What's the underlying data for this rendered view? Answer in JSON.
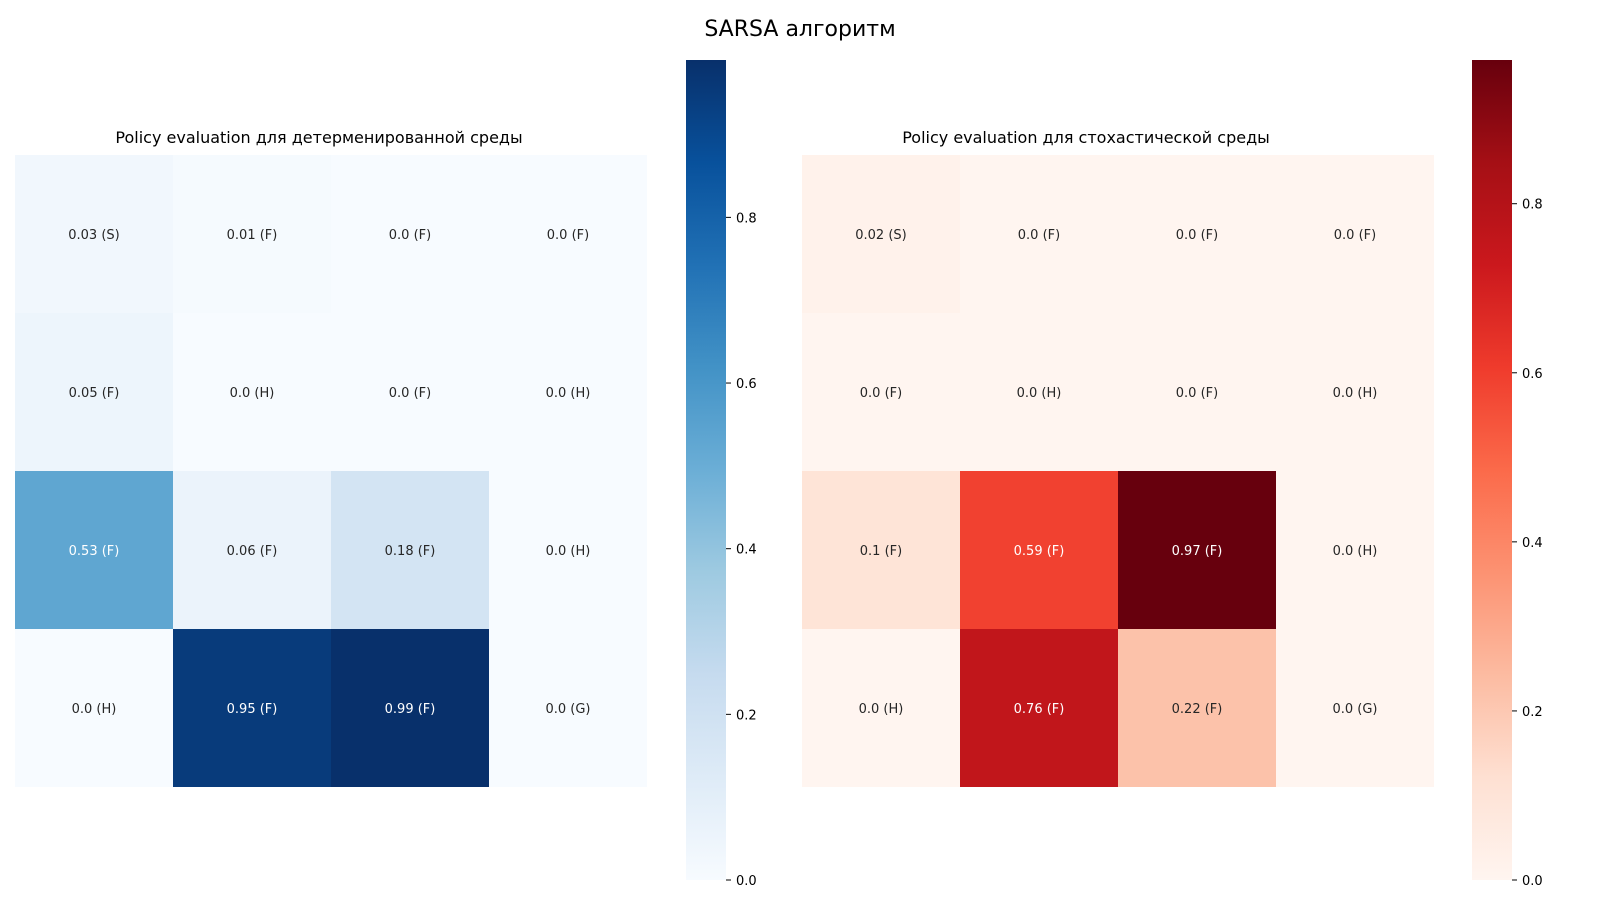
{
  "figure": {
    "title": "SARSA алгоритм"
  },
  "chart_data": [
    {
      "type": "heatmap",
      "title": "Policy evaluation для детерменированной среды",
      "colormap": "Blues",
      "colormap_stops": [
        "#f7fbff",
        "#deebf7",
        "#c6dbef",
        "#9ecae1",
        "#6baed6",
        "#4292c6",
        "#2171b5",
        "#08519c",
        "#08306b"
      ],
      "vmin": 0,
      "vmax": 0.99,
      "rows": 4,
      "cols": 4,
      "values": [
        [
          0.03,
          0.01,
          0.0,
          0.0
        ],
        [
          0.05,
          0.0,
          0.0,
          0.0
        ],
        [
          0.53,
          0.06,
          0.18,
          0.0
        ],
        [
          0.0,
          0.95,
          0.99,
          0.0
        ]
      ],
      "cell_labels": [
        [
          "0.03 (S)",
          "0.01 (F)",
          "0.0 (F)",
          "0.0 (F)"
        ],
        [
          "0.05 (F)",
          "0.0 (H)",
          "0.0 (F)",
          "0.0 (H)"
        ],
        [
          "0.53 (F)",
          "0.06 (F)",
          "0.18 (F)",
          "0.0 (H)"
        ],
        [
          "0.0 (H)",
          "0.95 (F)",
          "0.99 (F)",
          "0.0 (G)"
        ]
      ],
      "colorbar_ticks": [
        0.0,
        0.2,
        0.4,
        0.6,
        0.8
      ],
      "colorbar_tick_labels": [
        "0.0",
        "0.2",
        "0.4",
        "0.6",
        "0.8"
      ]
    },
    {
      "type": "heatmap",
      "title": "Policy evaluation для стохастической среды",
      "colormap": "Reds",
      "colormap_stops": [
        "#fff5f0",
        "#fee0d2",
        "#fcbba1",
        "#fc9272",
        "#fb6a4a",
        "#ef3b2c",
        "#cb181d",
        "#a50f15",
        "#67000d"
      ],
      "vmin": 0,
      "vmax": 0.97,
      "rows": 4,
      "cols": 4,
      "values": [
        [
          0.02,
          0.0,
          0.0,
          0.0
        ],
        [
          0.0,
          0.0,
          0.0,
          0.0
        ],
        [
          0.1,
          0.59,
          0.97,
          0.0
        ],
        [
          0.0,
          0.76,
          0.22,
          0.0
        ]
      ],
      "cell_labels": [
        [
          "0.02 (S)",
          "0.0 (F)",
          "0.0 (F)",
          "0.0 (F)"
        ],
        [
          "0.0 (F)",
          "0.0 (H)",
          "0.0 (F)",
          "0.0 (H)"
        ],
        [
          "0.1 (F)",
          "0.59 (F)",
          "0.97 (F)",
          "0.0 (H)"
        ],
        [
          "0.0 (H)",
          "0.76 (F)",
          "0.22 (F)",
          "0.0 (G)"
        ]
      ],
      "colorbar_ticks": [
        0.0,
        0.2,
        0.4,
        0.6,
        0.8
      ],
      "colorbar_tick_labels": [
        "0.0",
        "0.2",
        "0.4",
        "0.6",
        "0.8"
      ]
    }
  ]
}
